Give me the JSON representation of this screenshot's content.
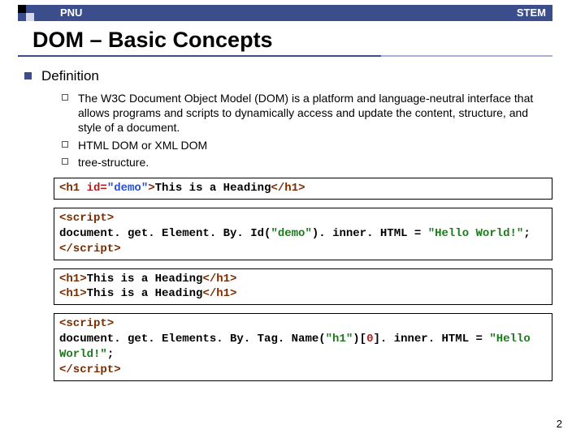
{
  "header": {
    "left": "PNU",
    "right": "STEM",
    "bar_color": "#3b4d8a"
  },
  "title": "DOM – Basic Concepts",
  "section": {
    "label": "Definition",
    "items": [
      "The W3C Document Object Model (DOM) is a platform and language-neutral interface that allows programs and scripts to dynamically access and update the content, structure, and style of a document.",
      "HTML DOM or XML DOM",
      "tree-structure."
    ]
  },
  "code": {
    "box1": {
      "tag_open": "<h1 ",
      "attr": "id=",
      "val": "\"demo\"",
      "tag_close1": ">",
      "text": "This is a Heading",
      "tag_close2": "</h1>"
    },
    "box2": {
      "line1_open": "<script>",
      "line2a": "document. get. Element. By. Id(",
      "line2b": "\"demo\"",
      "line2c": "). inner. HTML = ",
      "line2d": "\"Hello World!\"",
      "line2e": ";",
      "line3": "</script>"
    },
    "box3": {
      "l1_open": "<h1>",
      "l1_text": "This is a Heading",
      "l1_close": "</h1>",
      "l2_open": "<h1>",
      "l2_text": "This is a Heading",
      "l2_close": "</h1>"
    },
    "box4": {
      "line1_open": "<script>",
      "line2a": "document. get. Elements. By. Tag. Name(",
      "line2b": "\"h1\"",
      "line2c": ")[",
      "line2d": "0",
      "line2e": "]. inner. HTML = ",
      "line2f": "\"Hello World!\"",
      "line2g": ";",
      "line3": "</script>"
    }
  },
  "page_number": "2"
}
